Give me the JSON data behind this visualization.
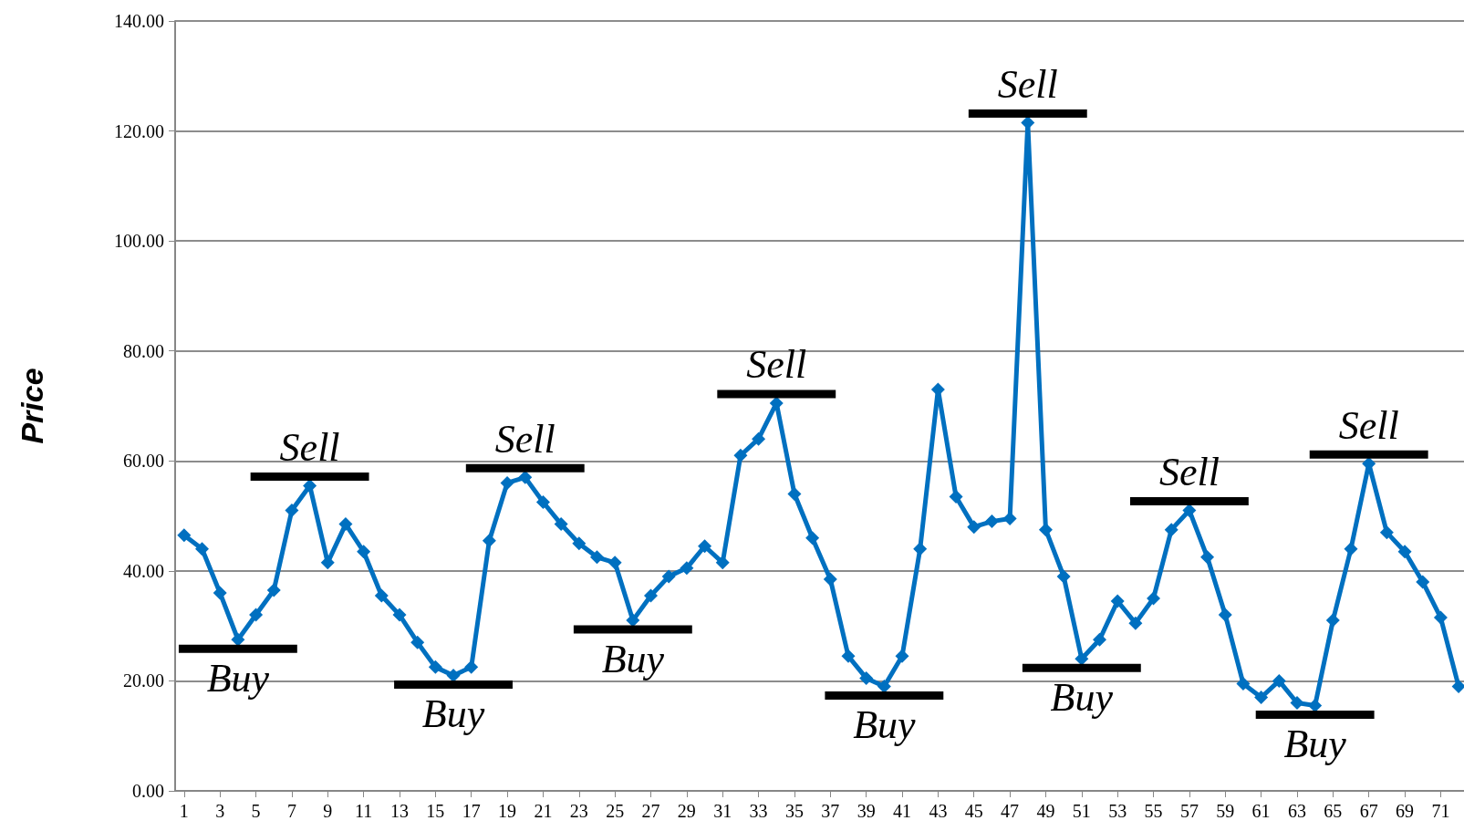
{
  "chart_data": {
    "type": "line",
    "ylabel": "Price",
    "x": [
      1,
      2,
      3,
      4,
      5,
      6,
      7,
      8,
      9,
      10,
      11,
      12,
      13,
      14,
      15,
      16,
      17,
      18,
      19,
      20,
      21,
      22,
      23,
      24,
      25,
      26,
      27,
      28,
      29,
      30,
      31,
      32,
      33,
      34,
      35,
      36,
      37,
      38,
      39,
      40,
      41,
      42,
      43,
      44,
      45,
      46,
      47,
      48,
      49,
      50,
      51,
      52,
      53,
      54,
      55,
      56,
      57,
      58,
      59,
      60,
      61,
      62,
      63,
      64,
      65,
      66,
      67,
      68,
      69,
      70,
      71,
      72
    ],
    "xlim": [
      0.5,
      72.3
    ],
    "xticks": [
      1,
      3,
      5,
      7,
      9,
      11,
      13,
      15,
      17,
      19,
      21,
      23,
      25,
      27,
      29,
      31,
      33,
      35,
      37,
      39,
      41,
      43,
      45,
      47,
      49,
      51,
      53,
      55,
      57,
      59,
      61,
      63,
      65,
      67,
      69,
      71
    ],
    "series": [
      {
        "color": "#0070c0",
        "values": [
          46.5,
          44,
          36,
          27.5,
          32,
          36.5,
          51,
          55.5,
          41.5,
          48.5,
          43.5,
          35.5,
          32,
          27,
          22.5,
          21,
          22.5,
          45.5,
          56,
          57,
          52.5,
          48.5,
          45,
          42.5,
          41.5,
          31,
          35.5,
          39,
          40.5,
          44.5,
          41.5,
          61,
          64,
          70.5,
          54,
          46,
          38.5,
          24.5,
          20.5,
          19,
          24.5,
          44,
          73,
          53.5,
          48,
          49,
          49.5,
          121.5,
          47.5,
          39,
          24,
          27.5,
          34.5,
          30.5,
          35,
          47.5,
          51,
          42.5,
          32,
          19.5,
          17,
          20,
          16,
          15.5,
          31,
          44,
          59.5,
          47,
          43.5,
          38,
          31.5,
          19
        ]
      }
    ],
    "ylim": [
      0,
      140
    ],
    "yticks": [
      {
        "value": 0,
        "label": "0.00"
      },
      {
        "value": 20,
        "label": "20.00"
      },
      {
        "value": 40,
        "label": "40.00"
      },
      {
        "value": 60,
        "label": "60.00"
      },
      {
        "value": 80,
        "label": "80.00"
      },
      {
        "value": 100,
        "label": "100.00"
      },
      {
        "value": 120,
        "label": "120.00"
      },
      {
        "value": 140,
        "label": "140.00"
      }
    ],
    "grid": "y",
    "marker": "diamond",
    "line_style": "solid",
    "annotations": [
      {
        "text": "Buy",
        "x": 4,
        "y": 27.5
      },
      {
        "text": "Sell",
        "x": 8,
        "y": 55.5
      },
      {
        "text": "Buy",
        "x": 16,
        "y": 21
      },
      {
        "text": "Sell",
        "x": 20,
        "y": 57
      },
      {
        "text": "Buy",
        "x": 26,
        "y": 31
      },
      {
        "text": "Sell",
        "x": 34,
        "y": 70.5
      },
      {
        "text": "Buy",
        "x": 40,
        "y": 19
      },
      {
        "text": "Sell",
        "x": 48,
        "y": 121.5
      },
      {
        "text": "Buy",
        "x": 51,
        "y": 24
      },
      {
        "text": "Sell",
        "x": 57,
        "y": 51
      },
      {
        "text": "Buy",
        "x": 64,
        "y": 15.5
      },
      {
        "text": "Sell",
        "x": 67,
        "y": 59.5
      }
    ]
  }
}
